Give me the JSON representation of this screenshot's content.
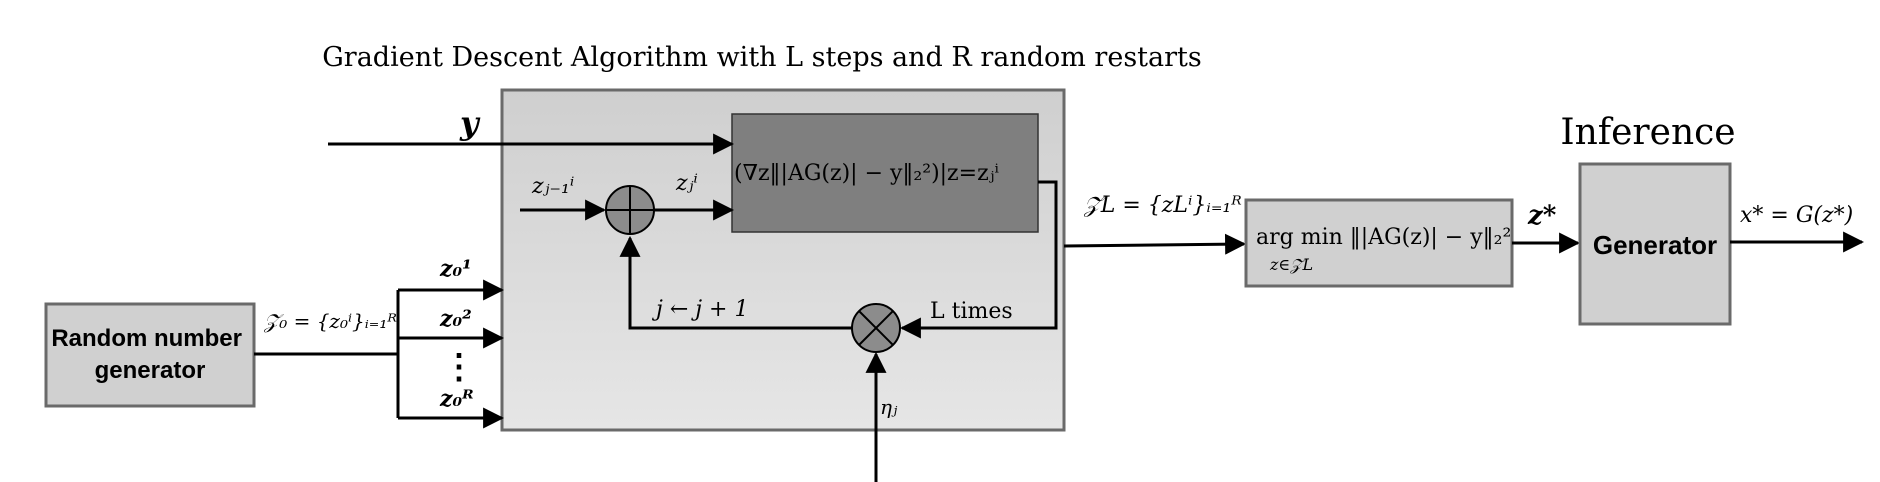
{
  "title": "Gradient Descent Algorithm with L steps and R random restarts",
  "inference_label": "Inference",
  "blocks": {
    "random_number_generator": "Random number generator",
    "generator": "Generator",
    "gradient": "(∇z‖|AG(z)| − y‖₂²)|z=zⱼⁱ",
    "argmin": "arg min ‖|AG(z)| − y‖₂²",
    "argmin_subscript": "z∈𝒵L"
  },
  "labels": {
    "y_input": "y",
    "z_prev": "zⱼ₋₁ⁱ",
    "z_curr": "zⱼⁱ",
    "Z0_set": "𝒵₀ = {z₀ⁱ}ᵢ₌₁ᴿ",
    "z01": "z₀¹",
    "z02": "z₀²",
    "z0R": "z₀ᴿ",
    "vdots": "⋮",
    "update": "j ← j + 1",
    "l_times": "L times",
    "eta": "ηⱼ",
    "ZL_set": "𝒵L = {zLⁱ}ᵢ₌₁ᴿ",
    "z_star": "z*",
    "x_star": "x* = G(z*)"
  },
  "colors": {
    "outer_box": "#d2d2d2",
    "gradient_box": "#7f7f7f",
    "block_fill": "#d0d0d0",
    "node_fill": "#8c8c8c"
  }
}
